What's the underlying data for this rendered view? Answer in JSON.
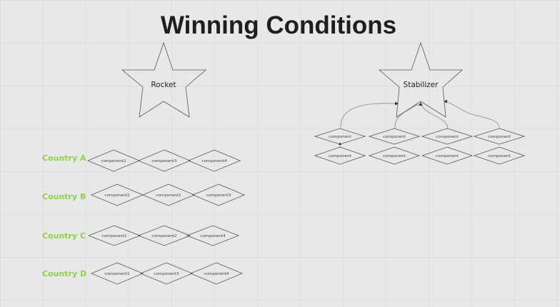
{
  "title": "Winning Conditions",
  "goals": [
    {
      "label": "Rocket"
    },
    {
      "label": "Stabilizer"
    }
  ],
  "countries": [
    {
      "name": "Country A",
      "components": [
        "component2",
        "component3",
        "component4"
      ]
    },
    {
      "name": "Country B",
      "components": [
        "component1",
        "component2",
        "component3"
      ]
    },
    {
      "name": "Country C",
      "components": [
        "component1",
        "component2",
        "component4"
      ]
    },
    {
      "name": "Country D",
      "components": [
        "component1",
        "component3",
        "component4"
      ]
    }
  ],
  "stabilizer_components": {
    "top_row": [
      "component",
      "component",
      "component",
      "component"
    ],
    "bottom_row": [
      "component",
      "component",
      "component",
      "component"
    ]
  },
  "colors": {
    "country_label": "#8fcf4a",
    "title": "#1e1e1e",
    "background": "#e8e8e8"
  }
}
